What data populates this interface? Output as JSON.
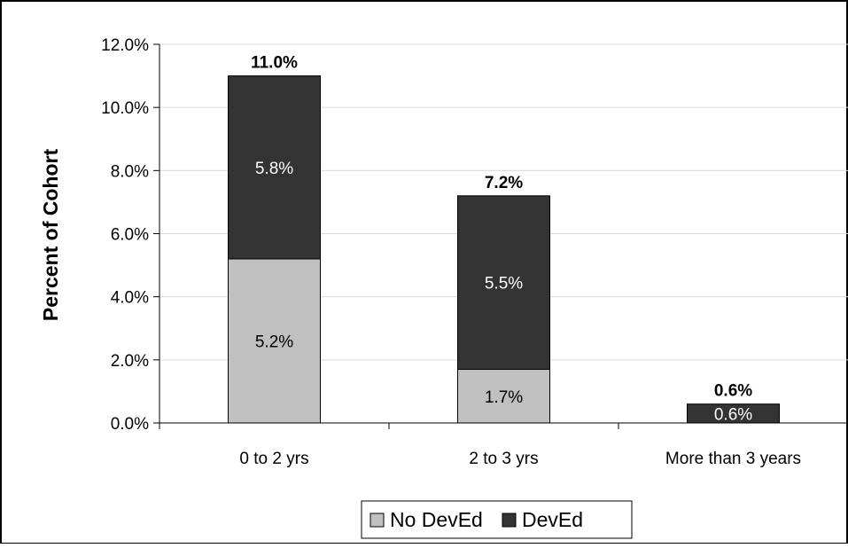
{
  "chart_data": {
    "type": "bar",
    "stacked": true,
    "categories": [
      "0 to 2 yrs",
      "2 to 3 yrs",
      "More than 3 years"
    ],
    "series": [
      {
        "name": "No DevEd",
        "values": [
          5.2,
          1.7,
          0.0
        ],
        "color": "#c0c0c0",
        "labels": [
          "5.2%",
          "1.7%",
          ""
        ]
      },
      {
        "name": "DevEd",
        "values": [
          5.8,
          5.5,
          0.6
        ],
        "color": "#333333",
        "labels": [
          "5.8%",
          "5.5%",
          "0.6%"
        ]
      }
    ],
    "totals": [
      11.0,
      7.2,
      0.6
    ],
    "total_labels": [
      "11.0%",
      "7.2%",
      "0.6%"
    ],
    "title": "",
    "xlabel": "",
    "ylabel": "Percent of Cohort",
    "ylim": [
      0,
      12
    ],
    "yticks": [
      0,
      2,
      4,
      6,
      8,
      10,
      12
    ],
    "ytick_labels": [
      "0.0%",
      "2.0%",
      "4.0%",
      "6.0%",
      "8.0%",
      "10.0%",
      "12.0%"
    ],
    "grid": true,
    "legend": "bottom-center"
  }
}
